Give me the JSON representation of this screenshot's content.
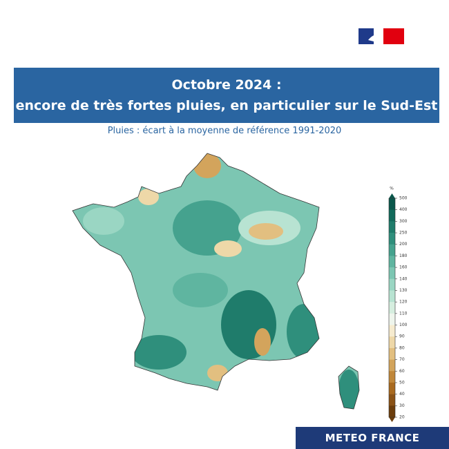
{
  "header": {
    "title_lines": [
      "Octobre 2024 :",
      "encore de très fortes pluies, en particulier sur le Sud-Est"
    ],
    "subtitle": "Pluies : écart à la moyenne de référence 1991-2020"
  },
  "legend": {
    "unit": "%",
    "ticks": [
      500,
      400,
      300,
      250,
      200,
      180,
      160,
      140,
      130,
      120,
      110,
      100,
      90,
      80,
      70,
      60,
      50,
      40,
      30,
      20
    ],
    "colors": [
      "#0a574b",
      "#126a5b",
      "#1f7c6b",
      "#2f8f7c",
      "#45a28e",
      "#5fb5a0",
      "#7cc6b2",
      "#9ad6c3",
      "#b8e3d2",
      "#d6eedf",
      "#eef5ec",
      "#f6ebcf",
      "#eed8a8",
      "#e2bf80",
      "#d3a45c",
      "#c0873a",
      "#a8691f",
      "#8a5216",
      "#6b3d0c"
    ]
  },
  "footer": {
    "brand": "METEO FRANCE"
  }
}
